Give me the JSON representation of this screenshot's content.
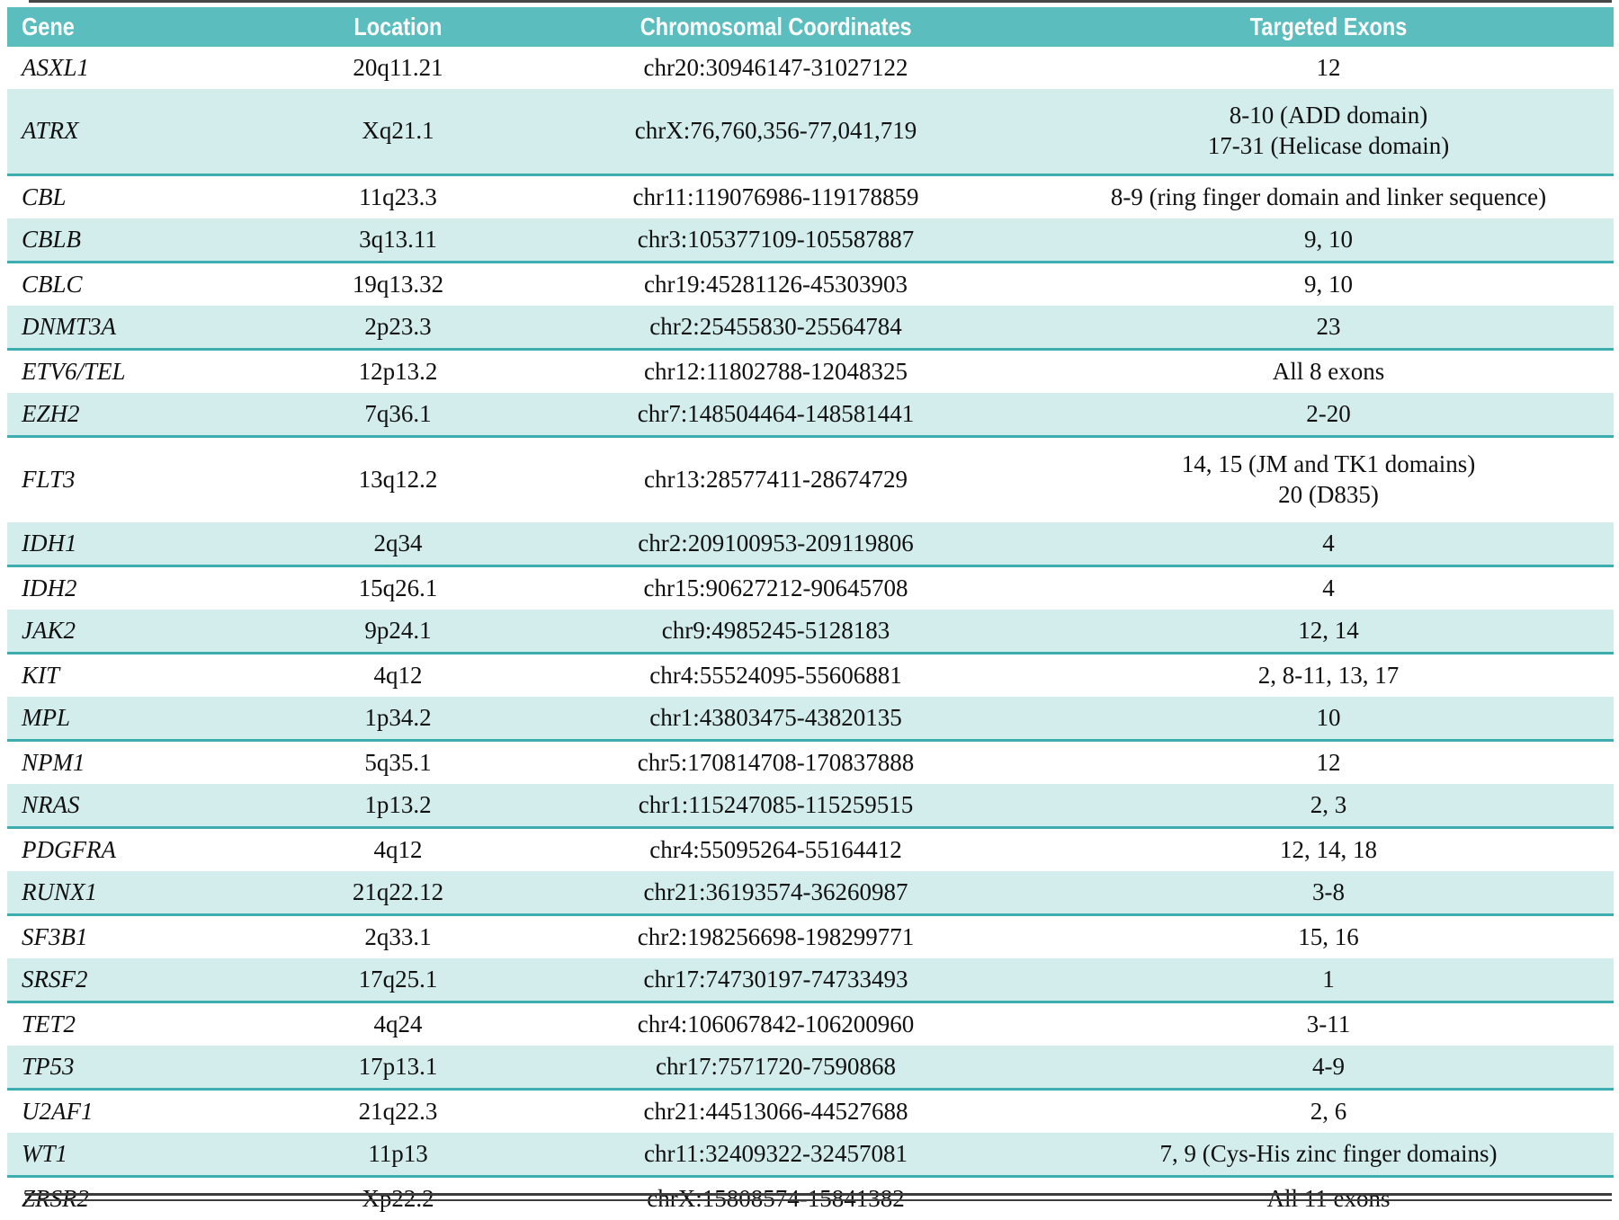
{
  "table": {
    "columns": [
      "Gene",
      "Location",
      "Chromosomal Coordinates",
      "Targeted Exons"
    ],
    "rows": [
      {
        "gene": "ASXL1",
        "location": "20q11.21",
        "coordinates": "chr20:30946147-31027122",
        "exons": [
          "12"
        ]
      },
      {
        "gene": "ATRX",
        "location": "Xq21.1",
        "coordinates": "chrX:76,760,356-77,041,719",
        "exons": [
          "8-10 (ADD domain)",
          "17-31 (Helicase domain)"
        ]
      },
      {
        "gene": "CBL",
        "location": "11q23.3",
        "coordinates": "chr11:119076986-119178859",
        "exons": [
          "8-9 (ring finger domain and linker sequence)"
        ]
      },
      {
        "gene": "CBLB",
        "location": "3q13.11",
        "coordinates": "chr3:105377109-105587887",
        "exons": [
          "9, 10"
        ]
      },
      {
        "gene": "CBLC",
        "location": "19q13.32",
        "coordinates": "chr19:45281126-45303903",
        "exons": [
          "9, 10"
        ]
      },
      {
        "gene": "DNMT3A",
        "location": "2p23.3",
        "coordinates": "chr2:25455830-25564784",
        "exons": [
          "23"
        ]
      },
      {
        "gene": "ETV6/TEL",
        "location": "12p13.2",
        "coordinates": "chr12:11802788-12048325",
        "exons": [
          "All 8 exons"
        ]
      },
      {
        "gene": "EZH2",
        "location": "7q36.1",
        "coordinates": "chr7:148504464-148581441",
        "exons": [
          "2-20"
        ]
      },
      {
        "gene": "FLT3",
        "location": "13q12.2",
        "coordinates": "chr13:28577411-28674729",
        "exons": [
          "14, 15 (JM and TK1 domains)",
          "20 (D835)"
        ]
      },
      {
        "gene": "IDH1",
        "location": "2q34",
        "coordinates": "chr2:209100953-209119806",
        "exons": [
          "4"
        ]
      },
      {
        "gene": "IDH2",
        "location": "15q26.1",
        "coordinates": "chr15:90627212-90645708",
        "exons": [
          "4"
        ]
      },
      {
        "gene": "JAK2",
        "location": "9p24.1",
        "coordinates": "chr9:4985245-5128183",
        "exons": [
          "12, 14"
        ]
      },
      {
        "gene": "KIT",
        "location": "4q12",
        "coordinates": "chr4:55524095-55606881",
        "exons": [
          "2, 8-11, 13, 17"
        ]
      },
      {
        "gene": "MPL",
        "location": "1p34.2",
        "coordinates": "chr1:43803475-43820135",
        "exons": [
          "10"
        ]
      },
      {
        "gene": "NPM1",
        "location": "5q35.1",
        "coordinates": "chr5:170814708-170837888",
        "exons": [
          "12"
        ]
      },
      {
        "gene": "NRAS",
        "location": "1p13.2",
        "coordinates": "chr1:115247085-115259515",
        "exons": [
          "2, 3"
        ]
      },
      {
        "gene": "PDGFRA",
        "location": "4q12",
        "coordinates": "chr4:55095264-55164412",
        "exons": [
          "12, 14, 18"
        ]
      },
      {
        "gene": "RUNX1",
        "location": "21q22.12",
        "coordinates": "chr21:36193574-36260987",
        "exons": [
          "3-8"
        ]
      },
      {
        "gene": "SF3B1",
        "location": "2q33.1",
        "coordinates": "chr2:198256698-198299771",
        "exons": [
          "15, 16"
        ]
      },
      {
        "gene": "SRSF2",
        "location": "17q25.1",
        "coordinates": "chr17:74730197-74733493",
        "exons": [
          "1"
        ]
      },
      {
        "gene": "TET2",
        "location": "4q24",
        "coordinates": "chr4:106067842-106200960",
        "exons": [
          "3-11"
        ]
      },
      {
        "gene": "TP53",
        "location": "17p13.1",
        "coordinates": "chr17:7571720-7590868",
        "exons": [
          "4-9"
        ]
      },
      {
        "gene": "U2AF1",
        "location": "21q22.3",
        "coordinates": "chr21:44513066-44527688",
        "exons": [
          "2, 6"
        ]
      },
      {
        "gene": "WT1",
        "location": "11p13",
        "coordinates": "chr11:32409322-32457081",
        "exons": [
          "7, 9 (Cys-His zinc finger domains)"
        ]
      },
      {
        "gene": "ZRSR2",
        "location": "Xp22.2",
        "coordinates": "chrX:15808574-15841382",
        "exons": [
          "All 11 exons"
        ]
      }
    ]
  },
  "colors": {
    "header_bg": "#5bbdbe",
    "header_text": "#ffffff",
    "row_shade_bg": "#d2edec",
    "row_shade_rule": "#3dadaf",
    "body_text": "#101010",
    "frame_rule": "#3c3c3c"
  }
}
